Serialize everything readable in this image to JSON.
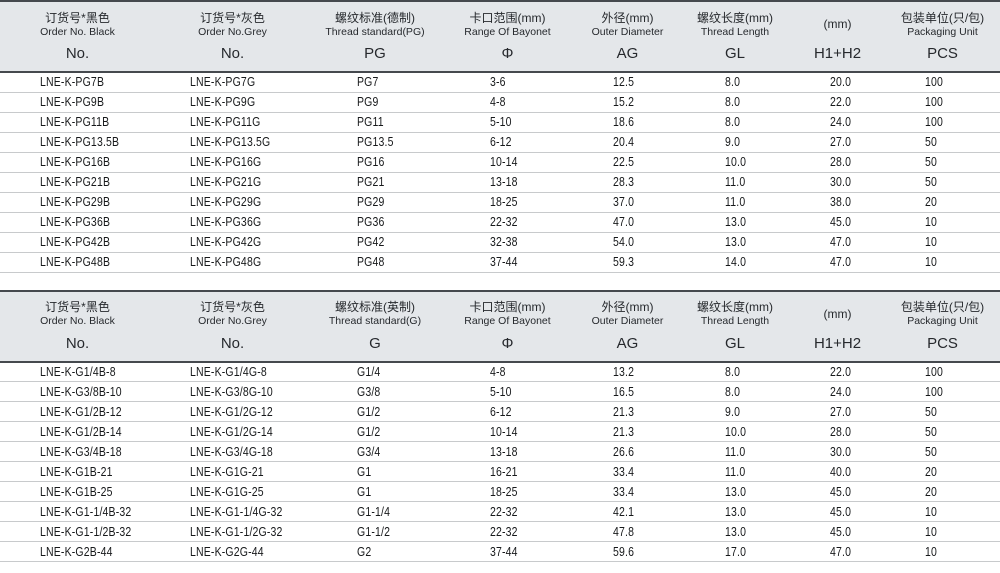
{
  "colors": {
    "header_bg": "#e4e7ea",
    "dark_border": "#45494e",
    "row_border": "#c8cacc",
    "text": "#1b1d1f"
  },
  "tables": [
    {
      "id": "pg-metric",
      "columns": [
        {
          "cn": "订货号*黑色",
          "en": "Order No. Black",
          "code": "No."
        },
        {
          "cn": "订货号*灰色",
          "en": "Order No.Grey",
          "code": "No."
        },
        {
          "cn": "螺纹标准(德制)",
          "en": "Thread standard(PG)",
          "code": "PG"
        },
        {
          "cn": "卡口范围(mm)",
          "en": "Range Of Bayonet",
          "code": "Φ"
        },
        {
          "cn": "外径(mm)",
          "en": "Outer Diameter",
          "code": "AG"
        },
        {
          "cn": "螺纹长度(mm)",
          "en": "Thread Length",
          "code": "GL"
        },
        {
          "cn": "(mm)",
          "en": "",
          "code": "H1+H2"
        },
        {
          "cn": "包装单位(只/包)",
          "en": "Packaging Unit",
          "code": "PCS"
        }
      ],
      "rows": [
        [
          "LNE-K-PG7B",
          "LNE-K-PG7G",
          "PG7",
          "3-6",
          "12.5",
          "8.0",
          "20.0",
          "100"
        ],
        [
          "LNE-K-PG9B",
          "LNE-K-PG9G",
          "PG9",
          "4-8",
          "15.2",
          "8.0",
          "22.0",
          "100"
        ],
        [
          "LNE-K-PG11B",
          "LNE-K-PG11G",
          "PG11",
          "5-10",
          "18.6",
          "8.0",
          "24.0",
          "100"
        ],
        [
          "LNE-K-PG13.5B",
          "LNE-K-PG13.5G",
          "PG13.5",
          "6-12",
          "20.4",
          "9.0",
          "27.0",
          "50"
        ],
        [
          "LNE-K-PG16B",
          "LNE-K-PG16G",
          "PG16",
          "10-14",
          "22.5",
          "10.0",
          "28.0",
          "50"
        ],
        [
          "LNE-K-PG21B",
          "LNE-K-PG21G",
          "PG21",
          "13-18",
          "28.3",
          "11.0",
          "30.0",
          "50"
        ],
        [
          "LNE-K-PG29B",
          "LNE-K-PG29G",
          "PG29",
          "18-25",
          "37.0",
          "11.0",
          "38.0",
          "20"
        ],
        [
          "LNE-K-PG36B",
          "LNE-K-PG36G",
          "PG36",
          "22-32",
          "47.0",
          "13.0",
          "45.0",
          "10"
        ],
        [
          "LNE-K-PG42B",
          "LNE-K-PG42G",
          "PG42",
          "32-38",
          "54.0",
          "13.0",
          "47.0",
          "10"
        ],
        [
          "LNE-K-PG48B",
          "LNE-K-PG48G",
          "PG48",
          "37-44",
          "59.3",
          "14.0",
          "47.0",
          "10"
        ]
      ]
    },
    {
      "id": "g-imperial",
      "columns": [
        {
          "cn": "订货号*黑色",
          "en": "Order No. Black",
          "code": "No."
        },
        {
          "cn": "订货号*灰色",
          "en": "Order No.Grey",
          "code": "No."
        },
        {
          "cn": "螺纹标准(英制)",
          "en": "Thread standard(G)",
          "code": "G"
        },
        {
          "cn": "卡口范围(mm)",
          "en": "Range Of Bayonet",
          "code": "Φ"
        },
        {
          "cn": "外径(mm)",
          "en": "Outer Diameter",
          "code": "AG"
        },
        {
          "cn": "螺纹长度(mm)",
          "en": "Thread Length",
          "code": "GL"
        },
        {
          "cn": "(mm)",
          "en": "",
          "code": "H1+H2"
        },
        {
          "cn": "包装单位(只/包)",
          "en": "Packaging Unit",
          "code": "PCS"
        }
      ],
      "rows": [
        [
          "LNE-K-G1/4B-8",
          "LNE-K-G1/4G-8",
          "G1/4",
          "4-8",
          "13.2",
          "8.0",
          "22.0",
          "100"
        ],
        [
          "LNE-K-G3/8B-10",
          "LNE-K-G3/8G-10",
          "G3/8",
          "5-10",
          "16.5",
          "8.0",
          "24.0",
          "100"
        ],
        [
          "LNE-K-G1/2B-12",
          "LNE-K-G1/2G-12",
          "G1/2",
          "6-12",
          "21.3",
          "9.0",
          "27.0",
          "50"
        ],
        [
          "LNE-K-G1/2B-14",
          "LNE-K-G1/2G-14",
          "G1/2",
          "10-14",
          "21.3",
          "10.0",
          "28.0",
          "50"
        ],
        [
          "LNE-K-G3/4B-18",
          "LNE-K-G3/4G-18",
          "G3/4",
          "13-18",
          "26.6",
          "11.0",
          "30.0",
          "50"
        ],
        [
          "LNE-K-G1B-21",
          "LNE-K-G1G-21",
          "G1",
          "16-21",
          "33.4",
          "11.0",
          "40.0",
          "20"
        ],
        [
          "LNE-K-G1B-25",
          "LNE-K-G1G-25",
          "G1",
          "18-25",
          "33.4",
          "13.0",
          "45.0",
          "20"
        ],
        [
          "LNE-K-G1-1/4B-32",
          "LNE-K-G1-1/4G-32",
          "G1-1/4",
          "22-32",
          "42.1",
          "13.0",
          "45.0",
          "10"
        ],
        [
          "LNE-K-G1-1/2B-32",
          "LNE-K-G1-1/2G-32",
          "G1-1/2",
          "22-32",
          "47.8",
          "13.0",
          "45.0",
          "10"
        ],
        [
          "LNE-K-G2B-44",
          "LNE-K-G2G-44",
          "G2",
          "37-44",
          "59.6",
          "17.0",
          "47.0",
          "10"
        ]
      ]
    }
  ]
}
